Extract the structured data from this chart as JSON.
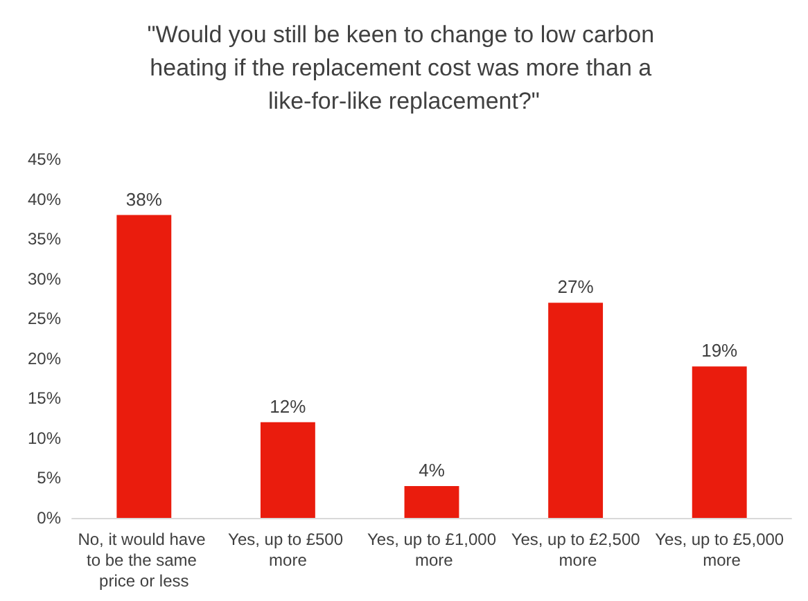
{
  "chart_data": {
    "type": "bar",
    "title": "\"Would you still be keen to change to low carbon heating if the replacement cost was more than a like-for-like replacement?\"",
    "categories": [
      "No, it would have to be the same price or less",
      "Yes, up to £500 more",
      "Yes, up to £1,000 more",
      "Yes, up to £2,500 more",
      "Yes, up to £5,000 more"
    ],
    "values": [
      38,
      12,
      4,
      27,
      19
    ],
    "value_labels": [
      "38%",
      "12%",
      "4%",
      "27%",
      "19%"
    ],
    "color": "#ea1c0d",
    "ylim": [
      0,
      45
    ],
    "yticks": [
      {
        "value": 0,
        "label": "0%"
      },
      {
        "value": 5,
        "label": "5%"
      },
      {
        "value": 10,
        "label": "10%"
      },
      {
        "value": 15,
        "label": "15%"
      },
      {
        "value": 20,
        "label": "20%"
      },
      {
        "value": 25,
        "label": "25%"
      },
      {
        "value": 30,
        "label": "30%"
      },
      {
        "value": 35,
        "label": "35%"
      },
      {
        "value": 40,
        "label": "40%"
      },
      {
        "value": 45,
        "label": "45%"
      }
    ],
    "grid": false
  }
}
